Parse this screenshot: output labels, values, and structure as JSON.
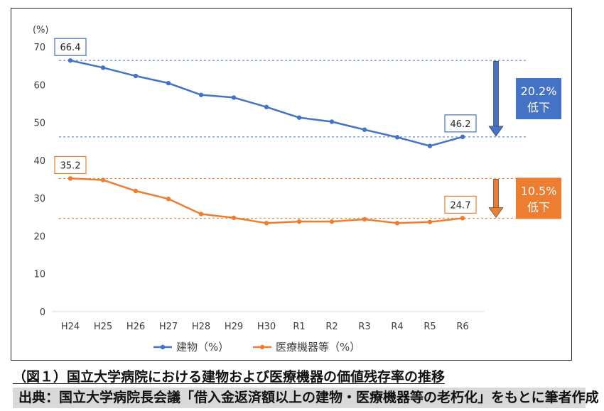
{
  "chart_data": {
    "type": "line",
    "title": "",
    "y_unit_label": "(%)",
    "ylim": [
      0,
      70
    ],
    "yticks": [
      0,
      10,
      20,
      30,
      40,
      50,
      60,
      70
    ],
    "grid": false,
    "legend_position": "bottom",
    "categories": [
      "H24",
      "H25",
      "H26",
      "H27",
      "H28",
      "H29",
      "H30",
      "R1",
      "R2",
      "R3",
      "R4",
      "R5",
      "R6"
    ],
    "series": [
      {
        "name": "建物（%）",
        "color": "#4472c4",
        "values": [
          66.4,
          64.5,
          62.3,
          60.4,
          57.3,
          56.6,
          54.1,
          51.3,
          50.2,
          48.1,
          46.1,
          43.8,
          46.2
        ]
      },
      {
        "name": "医療機器等（%）",
        "color": "#ed7d31",
        "values": [
          35.2,
          34.8,
          31.9,
          29.8,
          25.8,
          24.8,
          23.4,
          23.8,
          23.8,
          24.4,
          23.4,
          23.7,
          24.7
        ]
      }
    ],
    "annotations": {
      "start_labels": [
        "66.4",
        "35.2"
      ],
      "end_labels": [
        "46.2",
        "24.7"
      ],
      "decline_boxes": [
        {
          "line1": "20.2%",
          "line2": "低下",
          "color": "#4472c4"
        },
        {
          "line1": "10.5%",
          "line2": "低下",
          "color": "#ed7d31"
        }
      ]
    }
  },
  "caption": "（図１）国立大学病院における建物および医療機器の価値残存率の推移",
  "source": "出典：国立大学病院長会議「借入金返済額以上の建物・医療機器等の老朽化」をもとに筆者作成"
}
